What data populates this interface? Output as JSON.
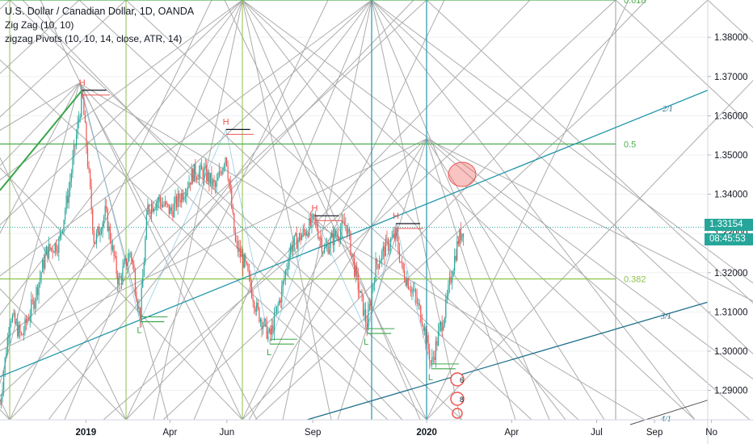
{
  "legend": {
    "symbol_line": "U.S. Dollar / Canadian Dollar, 1D, OANDA",
    "zigzag": "Zig Zag (10, 10)",
    "pivots": "zigzag Pivots (10, 10, 14, close, ATR, 14)"
  },
  "price_axis": {
    "last_price": "1.33154",
    "countdown": "08:45:53"
  },
  "fib_labels": [
    "0.618",
    "0.5",
    "0.382"
  ],
  "fan_labels": [
    "2/1",
    "3/1",
    "4/1"
  ],
  "event_badges": [
    "6",
    "8"
  ],
  "pivot_markers": {
    "high": "H",
    "low": "L"
  },
  "colors": {
    "up_candle": "#26a69a",
    "down_candle": "#ef5350",
    "fib_green": "#4caf50",
    "fib_olive": "#8bc34a",
    "vertical_blue": "#2196a8",
    "fan_line": "#1f6f8b",
    "gann_grey": "#9e9e9e",
    "zigzag_green": "#3aa64a"
  },
  "chart_data": {
    "type": "candlestick",
    "title": "U.S. Dollar / Canadian Dollar, 1D, OANDA",
    "x_axis": {
      "tick_labels": [
        "2019",
        "Apr",
        "Jun",
        "Sep",
        "2020",
        "Apr",
        "Jul",
        "Sep",
        "No"
      ]
    },
    "y_axis": {
      "tick_labels": [
        "1.38000",
        "1.37000",
        "1.36000",
        "1.35000",
        "1.34000",
        "1.33000",
        "1.32000",
        "1.31000",
        "1.30000",
        "1.29000"
      ],
      "range": [
        1.2825,
        1.3895
      ]
    },
    "last_price": 1.33154,
    "fib_levels": [
      {
        "label": "0.618",
        "price": 1.3895
      },
      {
        "label": "0.5",
        "price": 1.3528
      },
      {
        "label": "0.382",
        "price": 1.3184
      }
    ],
    "zigzag_pivots": [
      {
        "date": "2018-12-28",
        "price": 1.3665,
        "type": "H"
      },
      {
        "date": "2019-02-28",
        "price": 1.3075,
        "type": "L"
      },
      {
        "date": "2019-05-31",
        "price": 1.3565,
        "type": "H"
      },
      {
        "date": "2019-07-17",
        "price": 1.3018,
        "type": "L"
      },
      {
        "date": "2019-09-03",
        "price": 1.3345,
        "type": "H"
      },
      {
        "date": "2019-10-29",
        "price": 1.3045,
        "type": "L"
      },
      {
        "date": "2019-11-29",
        "price": 1.3325,
        "type": "H"
      },
      {
        "date": "2020-01-06",
        "price": 1.2955,
        "type": "L"
      }
    ],
    "price_path": [
      [
        "2018-10-01",
        1.2865
      ],
      [
        "2018-10-12",
        1.3095
      ],
      [
        "2018-10-24",
        1.3035
      ],
      [
        "2018-11-07",
        1.3135
      ],
      [
        "2018-11-20",
        1.3255
      ],
      [
        "2018-12-03",
        1.3275
      ],
      [
        "2018-12-14",
        1.3415
      ],
      [
        "2018-12-28",
        1.3655
      ],
      [
        "2019-01-10",
        1.3275
      ],
      [
        "2019-01-22",
        1.3355
      ],
      [
        "2019-02-05",
        1.3175
      ],
      [
        "2019-02-18",
        1.3255
      ],
      [
        "2019-02-28",
        1.3085
      ],
      [
        "2019-03-08",
        1.3365
      ],
      [
        "2019-03-20",
        1.3385
      ],
      [
        "2019-04-02",
        1.3355
      ],
      [
        "2019-04-15",
        1.3405
      ],
      [
        "2019-04-26",
        1.3455
      ],
      [
        "2019-05-08",
        1.3455
      ],
      [
        "2019-05-20",
        1.3415
      ],
      [
        "2019-05-31",
        1.3505
      ],
      [
        "2019-06-10",
        1.3275
      ],
      [
        "2019-06-21",
        1.3215
      ],
      [
        "2019-07-03",
        1.3105
      ],
      [
        "2019-07-17",
        1.3035
      ],
      [
        "2019-07-29",
        1.3145
      ],
      [
        "2019-08-08",
        1.3265
      ],
      [
        "2019-08-20",
        1.3295
      ],
      [
        "2019-09-03",
        1.3335
      ],
      [
        "2019-09-13",
        1.3255
      ],
      [
        "2019-09-25",
        1.3295
      ],
      [
        "2019-10-07",
        1.3325
      ],
      [
        "2019-10-16",
        1.3205
      ],
      [
        "2019-10-29",
        1.3065
      ],
      [
        "2019-11-07",
        1.3215
      ],
      [
        "2019-11-18",
        1.3265
      ],
      [
        "2019-11-29",
        1.3295
      ],
      [
        "2019-12-06",
        1.3205
      ],
      [
        "2019-12-17",
        1.3155
      ],
      [
        "2019-12-27",
        1.3085
      ],
      [
        "2020-01-06",
        1.2965
      ],
      [
        "2020-01-14",
        1.3045
      ],
      [
        "2020-01-21",
        1.3105
      ],
      [
        "2020-01-28",
        1.3205
      ],
      [
        "2020-02-04",
        1.3285
      ],
      [
        "2020-02-10",
        1.3315
      ]
    ]
  }
}
